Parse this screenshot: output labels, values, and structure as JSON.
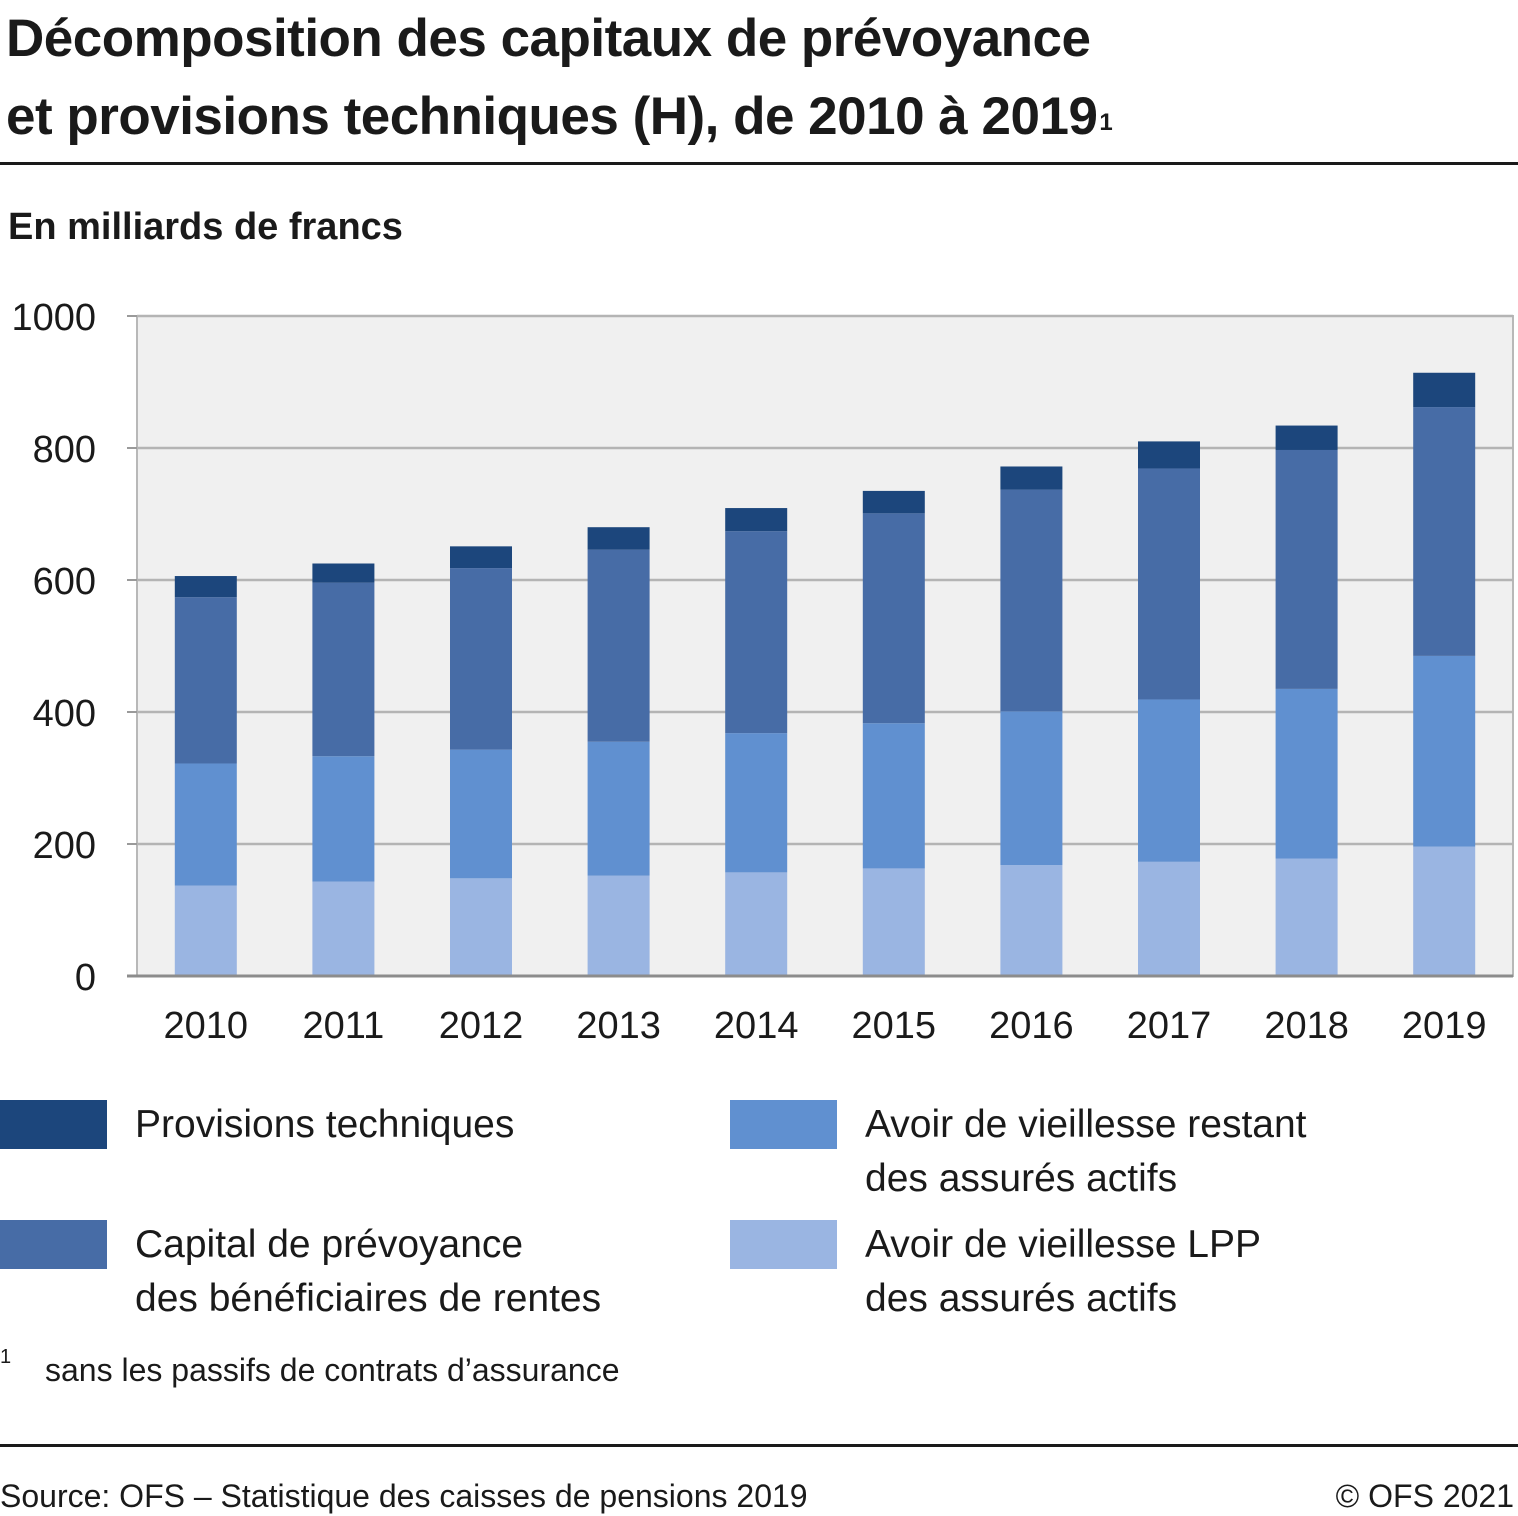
{
  "title": {
    "line1": "Décomposition des capitaux de prévoyance",
    "line2": "et provisions techniques (H), de 2010 à 2019",
    "footnote_mark": "1"
  },
  "unit_label": "En milliards de francs",
  "chart_data": {
    "type": "bar",
    "stacked": true,
    "categories": [
      "2010",
      "2011",
      "2012",
      "2013",
      "2014",
      "2015",
      "2016",
      "2017",
      "2018",
      "2019"
    ],
    "ylim": [
      0,
      1000
    ],
    "yticks": [
      0,
      200,
      400,
      600,
      800,
      1000
    ],
    "grid": true,
    "series": [
      {
        "name": "Avoir de vieillesse LPP des assurés actifs",
        "color": "#9ab5e2",
        "values": [
          137,
          143,
          148,
          152,
          157,
          163,
          168,
          173,
          178,
          196
        ]
      },
      {
        "name": "Avoir de vieillesse restant des assurés actifs",
        "color": "#6090d0",
        "values": [
          185,
          190,
          195,
          203,
          211,
          220,
          233,
          246,
          257,
          289
        ]
      },
      {
        "name": "Capital de prévoyance des bénéficiaires de rentes",
        "color": "#476ca6",
        "values": [
          252,
          263,
          275,
          291,
          306,
          318,
          336,
          350,
          362,
          377
        ]
      },
      {
        "name": "Provisions techniques",
        "color": "#1c467c",
        "values": [
          32,
          29,
          33,
          34,
          35,
          34,
          35,
          41,
          37,
          52
        ]
      }
    ]
  },
  "legend": [
    {
      "lines": [
        "Provisions techniques"
      ],
      "color": "#1c467c"
    },
    {
      "lines": [
        "Avoir de vieillesse restant",
        "des assurés actifs"
      ],
      "color": "#6090d0"
    },
    {
      "lines": [
        "Capital de prévoyance",
        "des bénéficiaires de rentes"
      ],
      "color": "#476ca6"
    },
    {
      "lines": [
        "Avoir de vieillesse LPP",
        "des assurés actifs"
      ],
      "color": "#9ab5e2"
    }
  ],
  "footnote": {
    "mark": "1",
    "text": "sans les passifs de contrats d’assurance"
  },
  "source": "Source: OFS – Statistique des caisses de pensions 2019",
  "copyright": "© OFS 2021"
}
